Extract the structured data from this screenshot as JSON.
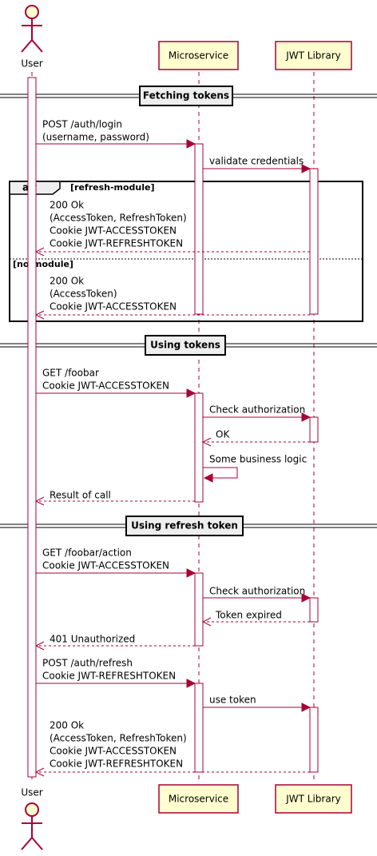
{
  "participants": [
    "User",
    "Microservice",
    "JWT Library"
  ],
  "dividers": [
    "Fetching tokens",
    "Using tokens",
    "Using refresh token"
  ],
  "group": {
    "keyword": "alt",
    "conditions": [
      "[refresh-module]",
      "[no-module]"
    ]
  },
  "messages": [
    {
      "lines": [
        "POST /auth/login",
        "(username, password)"
      ]
    },
    {
      "lines": [
        "validate credentials"
      ]
    },
    {
      "lines": [
        "200 Ok",
        "(AccessToken, RefreshToken)",
        "Cookie JWT-ACCESSTOKEN",
        "Cookie JWT-REFRESHTOKEN"
      ]
    },
    {
      "lines": [
        "200 Ok",
        "(AccessToken)",
        "Cookie JWT-ACCESSTOKEN"
      ]
    },
    {
      "lines": [
        "GET /foobar",
        "Cookie JWT-ACCESSTOKEN"
      ]
    },
    {
      "lines": [
        "Check authorization"
      ]
    },
    {
      "lines": [
        "OK"
      ]
    },
    {
      "lines": [
        "Some business logic"
      ]
    },
    {
      "lines": [
        "Result of call"
      ]
    },
    {
      "lines": [
        "GET /foobar/action",
        "Cookie JWT-ACCESSTOKEN"
      ]
    },
    {
      "lines": [
        "Check authorization"
      ]
    },
    {
      "lines": [
        "Token expired"
      ]
    },
    {
      "lines": [
        "401 Unauthorized"
      ]
    },
    {
      "lines": [
        "POST /auth/refresh",
        "Cookie JWT-REFRESHTOKEN"
      ]
    },
    {
      "lines": [
        "use token"
      ]
    },
    {
      "lines": [
        "200 Ok",
        "(AccessToken, RefreshToken)",
        "Cookie JWT-ACCESSTOKEN",
        "Cookie JWT-REFRESHTOKEN"
      ]
    }
  ]
}
